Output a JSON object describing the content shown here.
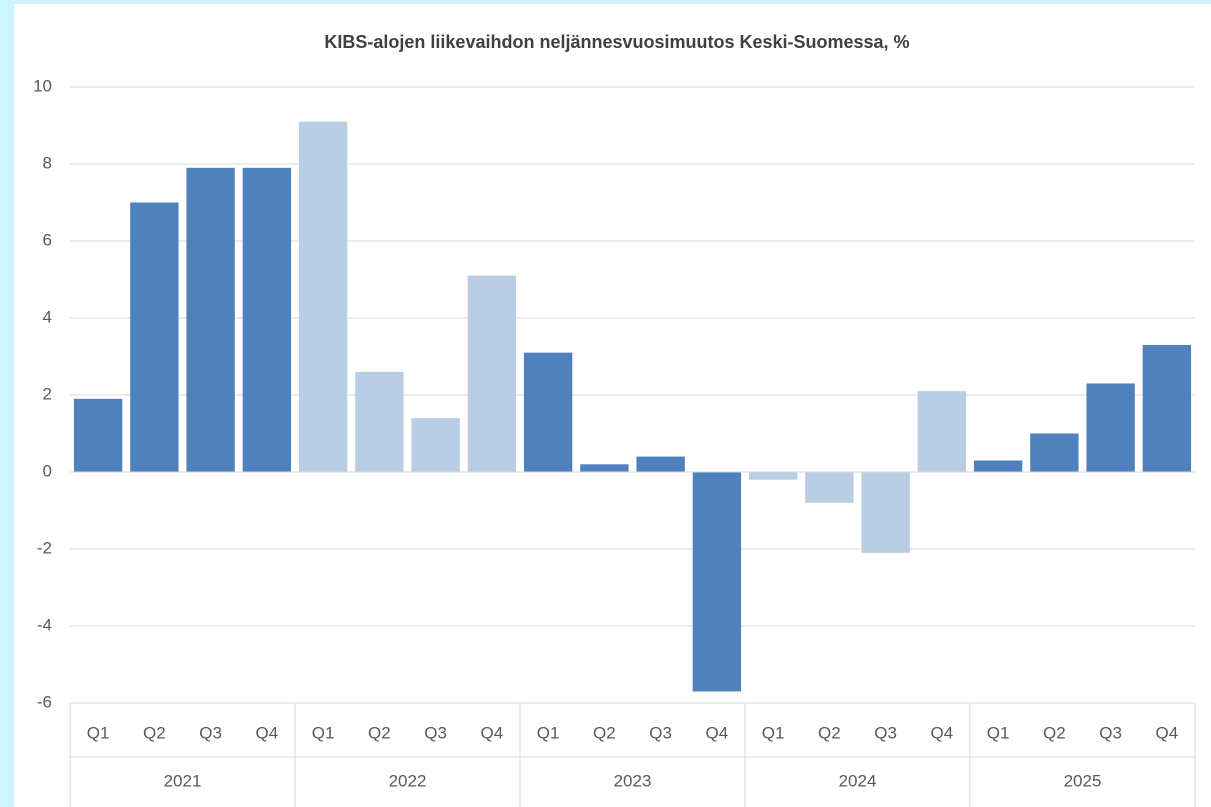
{
  "chart_data": {
    "type": "bar",
    "title": "KIBS-alojen liikevaihdon neljännesvuosimuutos Keski-Suomessa, %",
    "categories": [
      "Q1",
      "Q2",
      "Q3",
      "Q4",
      "Q1",
      "Q2",
      "Q3",
      "Q4",
      "Q1",
      "Q2",
      "Q3",
      "Q4",
      "Q1",
      "Q2",
      "Q3",
      "Q4",
      "Q1",
      "Q2",
      "Q3",
      "Q4"
    ],
    "groups": [
      "2021",
      "2022",
      "2023",
      "2024",
      "2025"
    ],
    "values": [
      1.9,
      7.0,
      7.9,
      7.9,
      9.1,
      2.6,
      1.4,
      5.1,
      3.1,
      0.2,
      0.4,
      -5.7,
      -0.2,
      -0.8,
      -2.1,
      2.1,
      0.3,
      1.0,
      2.3,
      3.3
    ],
    "colors": [
      "#4f81bd",
      "#4f81bd",
      "#4f81bd",
      "#4f81bd",
      "#b9cde5",
      "#b9cde5",
      "#b9cde5",
      "#b9cde5",
      "#4f81bd",
      "#4f81bd",
      "#4f81bd",
      "#4f81bd",
      "#b9cde5",
      "#b9cde5",
      "#b9cde5",
      "#b9cde5",
      "#4f81bd",
      "#4f81bd",
      "#4f81bd",
      "#4f81bd"
    ],
    "ylim": [
      -6,
      10
    ],
    "yticks": [
      -6,
      -4,
      -2,
      0,
      2,
      4,
      6,
      8,
      10
    ],
    "grid": true
  }
}
